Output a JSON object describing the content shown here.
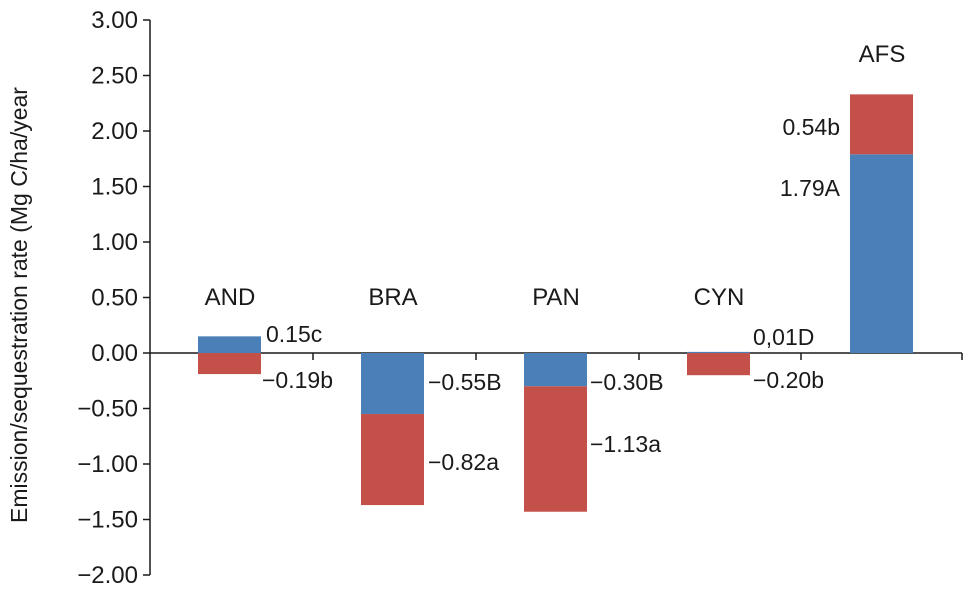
{
  "chart_data": {
    "type": "bar",
    "stacked": true,
    "title": "",
    "xlabel": "",
    "ylabel": "Emission/sequestration rate (Mg C/ha/year",
    "ylim": [
      -2.0,
      3.0
    ],
    "yticks": [
      "3.00",
      "2.50",
      "2.00",
      "1.50",
      "1.00",
      "0.50",
      "0.00",
      "−0.50",
      "−1.00",
      "−1.50",
      "−2.00"
    ],
    "ytick_values": [
      3.0,
      2.5,
      2.0,
      1.5,
      1.0,
      0.5,
      0.0,
      -0.5,
      -1.0,
      -1.5,
      -2.0
    ],
    "grid": false,
    "categories": [
      "AND",
      "BRA",
      "PAN",
      "CYN",
      "AFS"
    ],
    "series_colors": [
      "#4a7fb8",
      "#c4504a"
    ],
    "bars": [
      {
        "category": "AND",
        "segments": [
          {
            "from": 0,
            "to": 0.15,
            "color": "#4a7fb8",
            "label": "0.15c"
          },
          {
            "from": 0,
            "to": -0.19,
            "color": "#c4504a",
            "label": "−0.19b"
          }
        ]
      },
      {
        "category": "BRA",
        "segments": [
          {
            "from": 0,
            "to": -0.55,
            "color": "#4a7fb8",
            "label": "−0.55B"
          },
          {
            "from": -0.55,
            "to": -1.37,
            "color": "#c4504a",
            "label": "−0.82a"
          }
        ]
      },
      {
        "category": "PAN",
        "segments": [
          {
            "from": 0,
            "to": -0.3,
            "color": "#4a7fb8",
            "label": "−0.30B"
          },
          {
            "from": -0.3,
            "to": -1.43,
            "color": "#c4504a",
            "label": "−1.13a"
          }
        ]
      },
      {
        "category": "CYN",
        "segments": [
          {
            "from": 0,
            "to": 0.01,
            "color": "#4a7fb8",
            "label": "0,01D"
          },
          {
            "from": 0,
            "to": -0.2,
            "color": "#c4504a",
            "label": "−0.20b"
          }
        ]
      },
      {
        "category": "AFS",
        "segments": [
          {
            "from": 0,
            "to": 1.79,
            "color": "#4a7fb8",
            "label": "1.79A"
          },
          {
            "from": 1.79,
            "to": 2.33,
            "color": "#c4504a",
            "label": "0.54b"
          }
        ]
      }
    ]
  }
}
